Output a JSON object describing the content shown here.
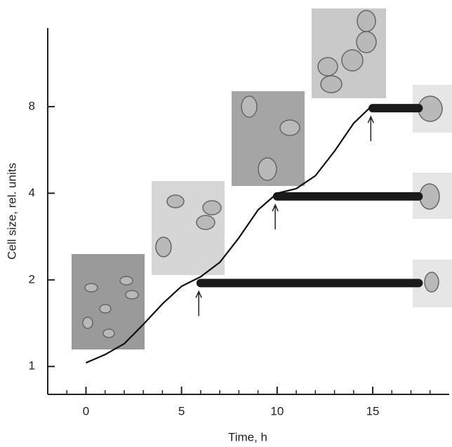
{
  "chart_data": {
    "type": "line",
    "x": [
      0,
      1,
      2,
      3,
      4,
      5,
      6,
      7,
      8,
      9,
      10,
      11,
      12,
      13,
      14,
      15
    ],
    "values": [
      1.03,
      1.1,
      1.2,
      1.4,
      1.65,
      1.9,
      2.05,
      2.3,
      2.8,
      3.5,
      4.0,
      4.15,
      4.6,
      5.6,
      7.0,
      8.1
    ],
    "xlabel": "Time, h",
    "ylabel": "Cell size, rel. units",
    "xlim": [
      -2,
      19
    ],
    "ylim": [
      0.8,
      15
    ],
    "log_y": true,
    "xticks": [
      0,
      5,
      10,
      15
    ],
    "xminorticks": [
      -1,
      0,
      1,
      2,
      3,
      4,
      5,
      6,
      7,
      8,
      9,
      10,
      11,
      12,
      13,
      14,
      15,
      16,
      17,
      18
    ],
    "yticks": [
      1,
      2,
      4,
      8
    ],
    "arrows": [
      5.9,
      9.9,
      14.9
    ],
    "segments": [
      {
        "x": [
          6.0,
          17.4
        ],
        "y": 1.95
      },
      {
        "x": [
          10.0,
          17.4
        ],
        "y": 3.9
      },
      {
        "x": [
          15.0,
          17.4
        ],
        "y": 7.9
      }
    ],
    "color": "#111"
  }
}
